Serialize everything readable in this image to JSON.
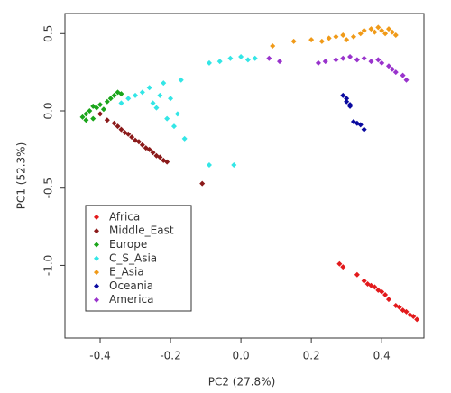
{
  "chart_data": {
    "type": "scatter",
    "xlabel": "PC2 (27.8%)",
    "ylabel": "PC1 (52.3%)",
    "xlim": [
      -0.5,
      0.52
    ],
    "ylim": [
      -1.47,
      0.63
    ],
    "xticks": [
      -0.4,
      -0.2,
      {
        "value": 0,
        "label": "0.0"
      },
      0.2,
      0.4
    ],
    "yticks": [
      {
        "value": -1,
        "label": "-1.0"
      },
      -0.5,
      {
        "value": 0,
        "label": "0.0"
      },
      0.5
    ],
    "legend": "bottomleft",
    "grid": false,
    "series": [
      {
        "name": "Africa",
        "color": "#e31a1c",
        "x": [
          0.28,
          0.29,
          0.33,
          0.35,
          0.36,
          0.37,
          0.38,
          0.39,
          0.4,
          0.41,
          0.42,
          0.44,
          0.45,
          0.46,
          0.47,
          0.48,
          0.49,
          0.5
        ],
        "y": [
          -0.99,
          -1.01,
          -1.06,
          -1.1,
          -1.12,
          -1.13,
          -1.14,
          -1.16,
          -1.17,
          -1.19,
          -1.22,
          -1.26,
          -1.27,
          -1.29,
          -1.3,
          -1.32,
          -1.33,
          -1.35
        ]
      },
      {
        "name": "Middle_East",
        "color": "#8b1a1a",
        "x": [
          -0.4,
          -0.38,
          -0.36,
          -0.35,
          -0.34,
          -0.33,
          -0.32,
          -0.31,
          -0.3,
          -0.29,
          -0.28,
          -0.27,
          -0.26,
          -0.25,
          -0.24,
          -0.23,
          -0.22,
          -0.21,
          -0.11
        ],
        "y": [
          -0.02,
          -0.06,
          -0.08,
          -0.1,
          -0.12,
          -0.14,
          -0.15,
          -0.17,
          -0.19,
          -0.2,
          -0.22,
          -0.24,
          -0.25,
          -0.27,
          -0.29,
          -0.3,
          -0.32,
          -0.33,
          -0.47
        ]
      },
      {
        "name": "Europe",
        "color": "#1aa51a",
        "x": [
          -0.45,
          -0.44,
          -0.43,
          -0.42,
          -0.41,
          -0.4,
          -0.39,
          -0.38,
          -0.37,
          -0.36,
          -0.35,
          -0.34,
          -0.42,
          -0.44
        ],
        "y": [
          -0.04,
          -0.02,
          0.0,
          -0.05,
          0.02,
          0.04,
          0.01,
          0.06,
          0.08,
          0.1,
          0.12,
          0.11,
          0.03,
          -0.06
        ]
      },
      {
        "name": "C_S_Asia",
        "color": "#33e6e6",
        "x": [
          -0.34,
          -0.32,
          -0.3,
          -0.28,
          -0.26,
          -0.25,
          -0.24,
          -0.23,
          -0.22,
          -0.21,
          -0.2,
          -0.19,
          -0.18,
          -0.17,
          -0.16,
          -0.09,
          -0.06,
          -0.03,
          0.0,
          0.02,
          0.04,
          -0.09,
          -0.02
        ],
        "y": [
          0.05,
          0.08,
          0.1,
          0.12,
          0.15,
          0.05,
          0.02,
          0.1,
          0.18,
          -0.05,
          0.08,
          -0.1,
          -0.02,
          0.2,
          -0.18,
          0.31,
          0.32,
          0.34,
          0.35,
          0.33,
          0.34,
          -0.35,
          -0.35
        ]
      },
      {
        "name": "E_Asia",
        "color": "#f09a18",
        "x": [
          0.09,
          0.15,
          0.2,
          0.23,
          0.25,
          0.27,
          0.29,
          0.3,
          0.32,
          0.34,
          0.35,
          0.37,
          0.38,
          0.39,
          0.4,
          0.41,
          0.42,
          0.43,
          0.44
        ],
        "y": [
          0.42,
          0.45,
          0.46,
          0.45,
          0.47,
          0.48,
          0.49,
          0.46,
          0.48,
          0.5,
          0.52,
          0.53,
          0.51,
          0.54,
          0.52,
          0.5,
          0.53,
          0.51,
          0.49
        ]
      },
      {
        "name": "Oceania",
        "color": "#0a0aa0",
        "x": [
          0.29,
          0.3,
          0.3,
          0.31,
          0.31,
          0.32,
          0.33,
          0.34,
          0.35
        ],
        "y": [
          0.1,
          0.08,
          0.06,
          0.04,
          0.03,
          -0.07,
          -0.08,
          -0.09,
          -0.12
        ]
      },
      {
        "name": "America",
        "color": "#9933cc",
        "x": [
          0.08,
          0.11,
          0.22,
          0.24,
          0.27,
          0.29,
          0.31,
          0.33,
          0.35,
          0.37,
          0.39,
          0.4,
          0.42,
          0.43,
          0.44,
          0.46,
          0.47
        ],
        "y": [
          0.34,
          0.32,
          0.31,
          0.32,
          0.33,
          0.34,
          0.35,
          0.33,
          0.34,
          0.32,
          0.33,
          0.31,
          0.29,
          0.27,
          0.25,
          0.23,
          0.2
        ]
      }
    ]
  }
}
